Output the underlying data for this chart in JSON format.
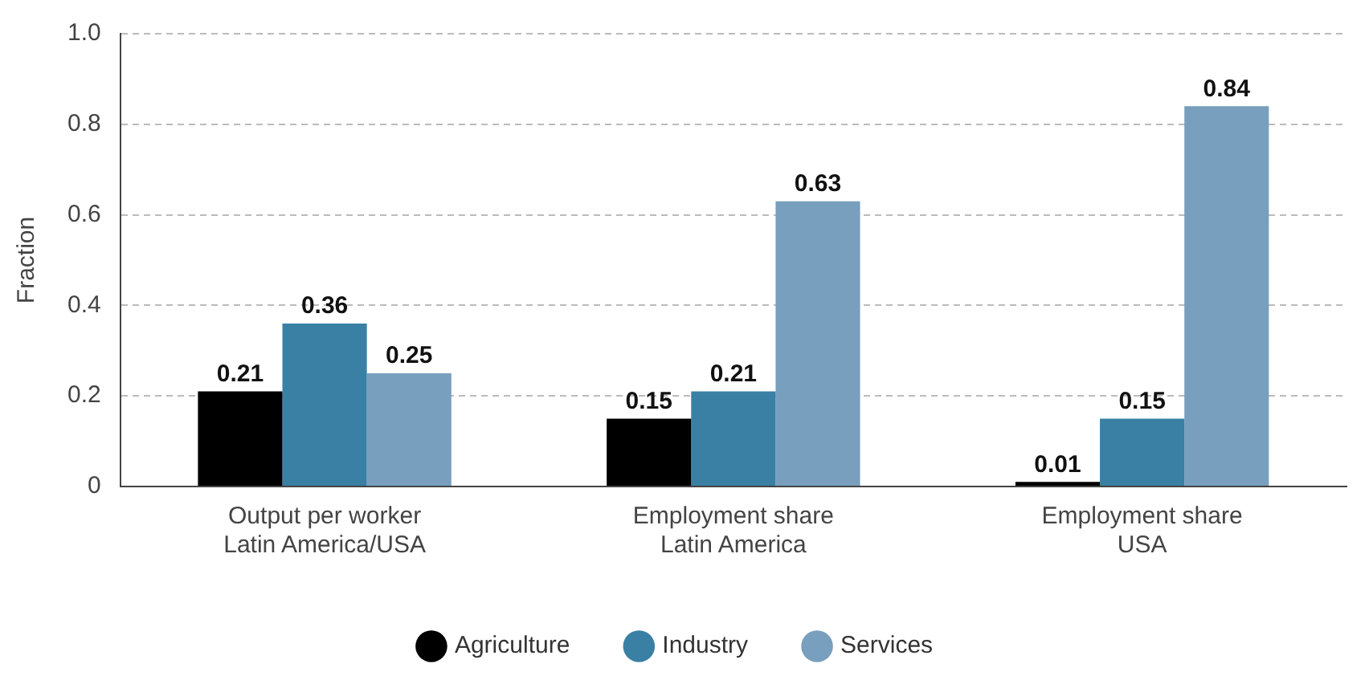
{
  "chart_data": {
    "type": "bar",
    "ylabel": "Fraction",
    "categories": [
      "Output per worker\nLatin America/USA",
      "Employment share\nLatin America",
      "Employment share\nUSA"
    ],
    "series": [
      {
        "name": "Agriculture",
        "color": "#000000",
        "values": [
          0.21,
          0.15,
          0.01
        ]
      },
      {
        "name": "Industry",
        "color": "#3a80a4",
        "values": [
          0.36,
          0.21,
          0.15
        ]
      },
      {
        "name": "Services",
        "color": "#789fbd",
        "values": [
          0.25,
          0.63,
          0.84
        ]
      }
    ],
    "ylim": [
      0,
      1
    ],
    "yticks": [
      0,
      0.2,
      0.4,
      0.6,
      0.8,
      {
        "value": 1,
        "label": "1.0"
      }
    ],
    "grid": "y",
    "legend": "bottom",
    "data_labels": true
  }
}
